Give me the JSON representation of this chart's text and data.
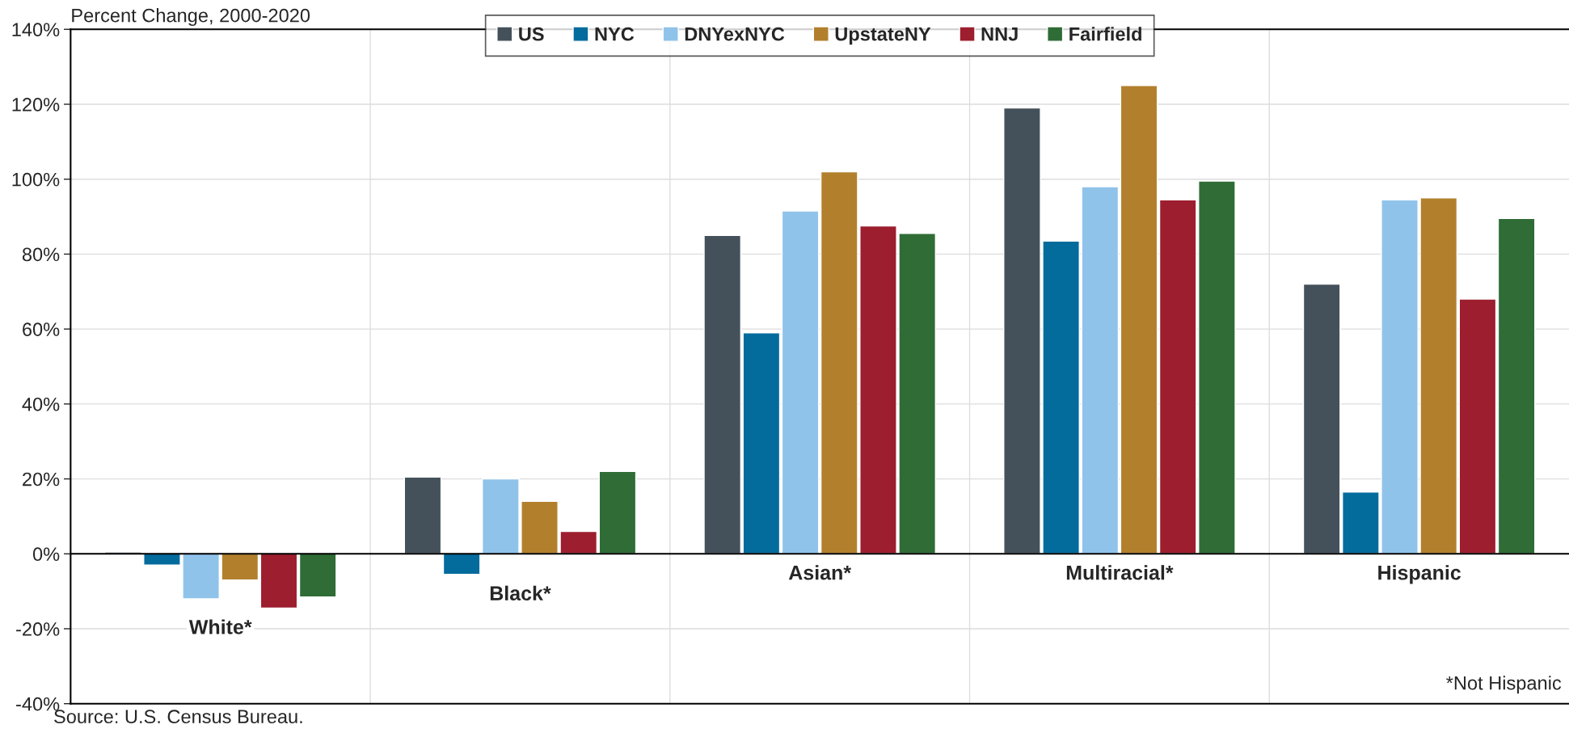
{
  "chart_data": {
    "type": "bar",
    "ylabel": "Percent Change, 2000-2020",
    "categories": [
      "White*",
      "Black*",
      "Asian*",
      "Multiracial*",
      "Hispanic"
    ],
    "series": [
      {
        "name": "US",
        "color": "#44515a",
        "values": [
          0.5,
          20.5,
          85,
          119,
          72
        ]
      },
      {
        "name": "NYC",
        "color": "#046b9d",
        "values": [
          -3,
          -5.5,
          59,
          83.5,
          16.5
        ]
      },
      {
        "name": "DNYexNYC",
        "color": "#90c3ea",
        "values": [
          -12,
          20,
          91.5,
          98,
          94.5
        ]
      },
      {
        "name": "UpstateNY",
        "color": "#b2802c",
        "values": [
          -7,
          14,
          102,
          125,
          95
        ]
      },
      {
        "name": "NNJ",
        "color": "#9d1e2e",
        "values": [
          -14.5,
          6,
          87.5,
          94.5,
          68
        ]
      },
      {
        "name": "Fairfield",
        "color": "#2f6c36",
        "values": [
          -11.5,
          22,
          85.5,
          99.5,
          89.5
        ]
      }
    ],
    "ylim": [
      -40,
      140
    ],
    "yticks": [
      {
        "value": -40,
        "label": "-40%"
      },
      {
        "value": -20,
        "label": "-20%"
      },
      {
        "value": 0,
        "label": "0%"
      },
      {
        "value": 20,
        "label": "20%"
      },
      {
        "value": 40,
        "label": "40%"
      },
      {
        "value": 60,
        "label": "60%"
      },
      {
        "value": 80,
        "label": "80%"
      },
      {
        "value": 100,
        "label": "100%"
      },
      {
        "value": 120,
        "label": "120%"
      },
      {
        "value": 140,
        "label": "140%"
      }
    ],
    "grid": true,
    "legend": "top",
    "annotations": [
      "Source: U.S. Census Bureau.",
      "*Not Hispanic"
    ]
  }
}
